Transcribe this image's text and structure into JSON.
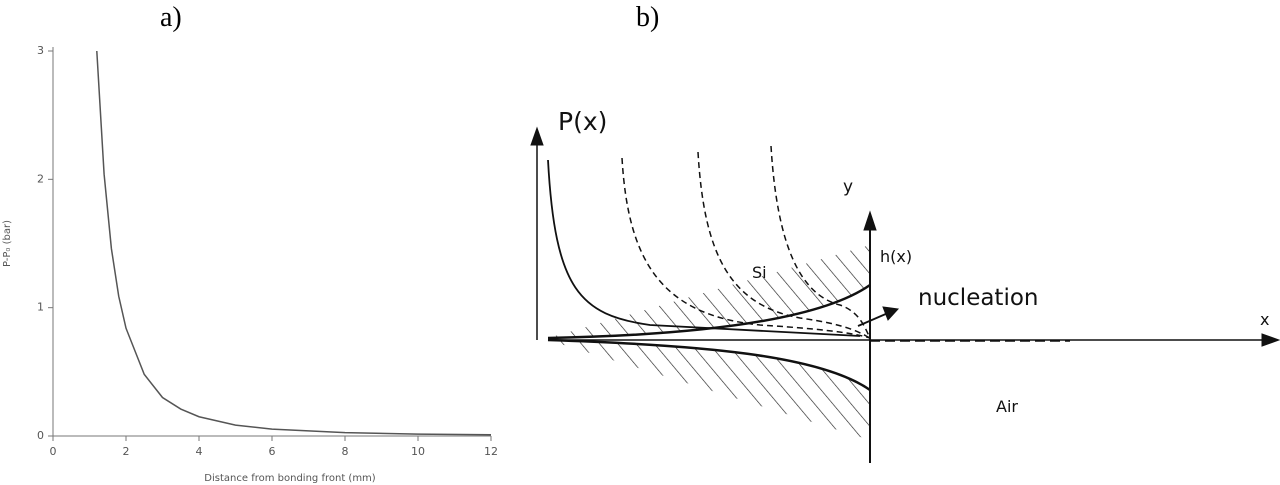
{
  "panels": [
    "a)",
    "b)"
  ],
  "chart_data": {
    "type": "line",
    "x_label": "Distance from bonding front (mm)",
    "y_label": "P-P₀ (bar)",
    "x": [
      1.2,
      1.4,
      1.6,
      1.8,
      2,
      2.5,
      3,
      3.5,
      4,
      5,
      6,
      8,
      10,
      12
    ],
    "series": [
      {
        "color": "#555555",
        "values": [
          3.0,
          2.04,
          1.46,
          1.09,
          0.84,
          0.48,
          0.3,
          0.21,
          0.15,
          0.085,
          0.054,
          0.026,
          0.015,
          0.01
        ]
      }
    ],
    "xlim": [
      0,
      12
    ],
    "xticks": [
      0,
      2,
      4,
      6,
      8,
      10,
      12
    ],
    "ylim": [
      0,
      3
    ],
    "yticks": [
      0,
      1,
      2,
      3
    ]
  },
  "diagram": {
    "labels": {
      "pressure": "P(x)",
      "y_axis": "y",
      "height": "h(x)",
      "silicon": "Si",
      "nucleation": "nucleation",
      "x_axis": "x",
      "air": "Air"
    }
  }
}
